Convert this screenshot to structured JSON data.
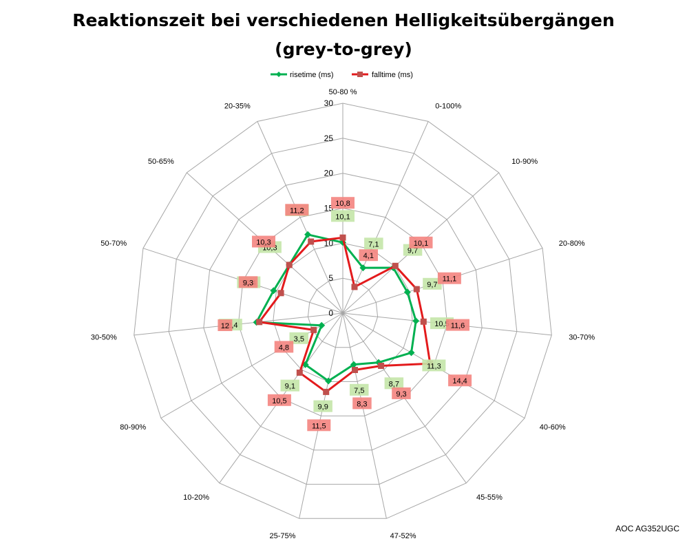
{
  "chart_data": {
    "type": "radar",
    "title_line1": "Reaktionszeit bei verschiedenen Helligkeitsübergängen",
    "title_line2": "(grey-to-grey)",
    "categories": [
      "50-80 %",
      "0-100%",
      "10-90%",
      "20-80%",
      "30-70%",
      "40-60%",
      "45-55%",
      "47-52%",
      "25-75%",
      "10-20%",
      "80-90%",
      "30-50%",
      "50-70%",
      "50-65%",
      "20-35%"
    ],
    "radial_ticks": [
      "0",
      "5",
      "10",
      "15",
      "20",
      "25",
      "30"
    ],
    "rlim": [
      0,
      30
    ],
    "grid": true,
    "legend_position": "top",
    "series": [
      {
        "name": "risetime (ms)",
        "color": "#00b050",
        "label_bg": "#c4e5a8",
        "marker": "diamond",
        "values": [
          10.1,
          7.1,
          9.7,
          9.7,
          10.5,
          11.3,
          8.7,
          7.5,
          9.9,
          9.1,
          3.5,
          12.4,
          10.4,
          10.3,
          12.3
        ],
        "labels": [
          "10,1",
          "7,1",
          "9,7",
          "9,7",
          "10,5",
          "11,3",
          "8,7",
          "7,5",
          "9,9",
          "9,1",
          "3,5",
          "12,4",
          "10,4",
          "10,3",
          "12,3"
        ]
      },
      {
        "name": "falltime (ms)",
        "color": "#e31a1c",
        "label_bg": "#f4847f",
        "marker": "square",
        "values": [
          10.8,
          4.1,
          10.1,
          11.1,
          11.6,
          14.4,
          9.3,
          8.3,
          11.5,
          10.5,
          4.8,
          12.0,
          9.3,
          10.3,
          11.2
        ],
        "labels": [
          "10,8",
          "4,1",
          "10,1",
          "11,1",
          "11,6",
          "14,4",
          "9,3",
          "8,3",
          "11,5",
          "10,5",
          "4,8",
          "12",
          "9,3",
          "10,3",
          "11,2"
        ]
      }
    ]
  },
  "footer": {
    "text": "AOC AG352UGC"
  }
}
